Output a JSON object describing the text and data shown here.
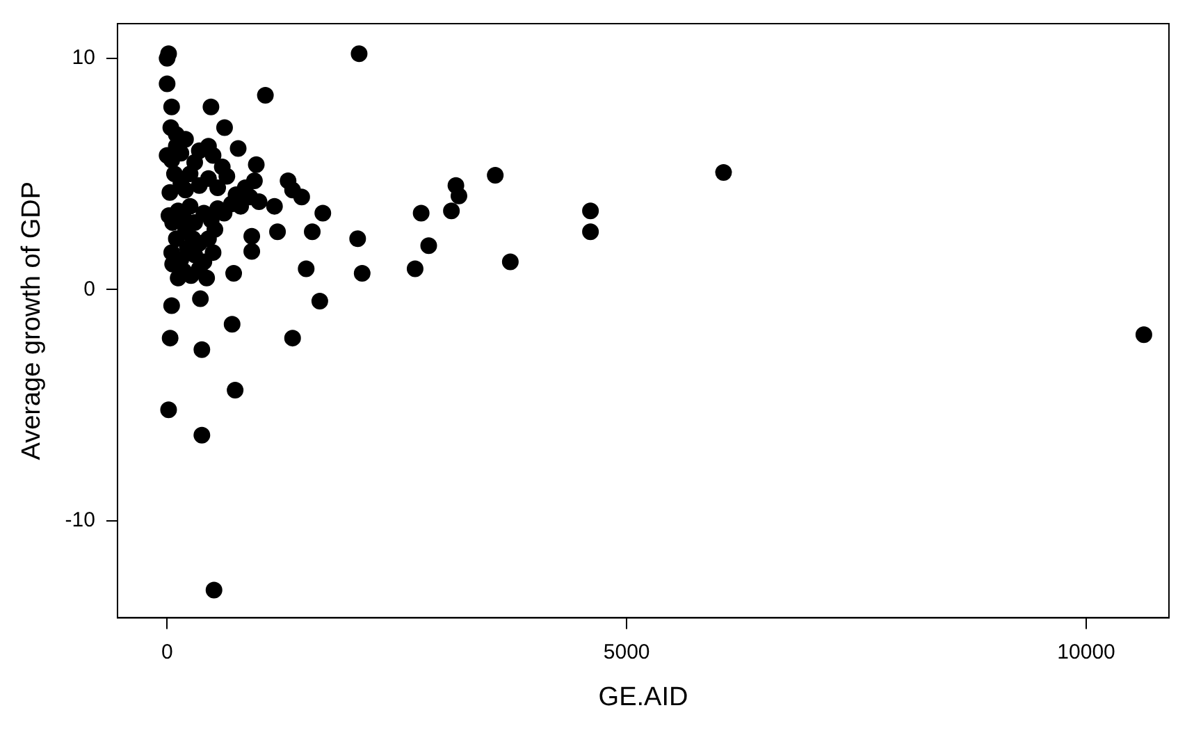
{
  "chart_data": {
    "type": "scatter",
    "xlabel": "GE.AID",
    "ylabel": "Average growth of GDP",
    "xlim": [
      -540,
      10900
    ],
    "ylim": [
      -14.2,
      11.5
    ],
    "xticks": [
      0,
      5000,
      10000
    ],
    "yticks": [
      -10,
      0,
      10
    ],
    "grid": false,
    "legend": false,
    "marker": "circle",
    "series": [
      {
        "color": "#000000",
        "x": [
          16,
          2089,
          0,
          0,
          1069,
          49,
          477,
          625,
          773,
          970,
          1316,
          1365,
          1464,
          1694,
          1168,
          1201,
          1579,
          2073,
          921,
          921,
          724,
          1513,
          2122,
          3570,
          3142,
          3175,
          3093,
          2764,
          2846,
          2698,
          3734,
          4606,
          4606,
          6054,
          10627,
          49,
          362,
          1661,
          707,
          33,
          1365,
          378,
          740,
          16,
          378,
          510,
          0,
          50,
          100,
          150,
          200,
          40,
          100,
          300,
          350,
          450,
          500,
          600,
          250,
          80,
          150,
          30,
          200,
          350,
          450,
          550,
          650,
          750,
          800,
          700,
          20,
          60,
          120,
          180,
          250,
          300,
          400,
          480,
          550,
          620,
          200,
          280,
          350,
          450,
          520,
          100,
          50,
          150,
          220,
          300,
          400,
          500,
          60,
          180,
          260,
          350,
          430,
          120,
          900,
          1000,
          850,
          950
        ],
        "values": [
          10.2,
          10.2,
          10.0,
          8.9,
          8.4,
          7.9,
          7.9,
          7.0,
          6.1,
          5.4,
          4.7,
          4.3,
          4.0,
          3.3,
          3.6,
          2.5,
          2.5,
          2.2,
          2.3,
          1.65,
          0.7,
          0.9,
          0.7,
          4.94,
          4.5,
          4.05,
          3.4,
          3.3,
          1.9,
          0.9,
          1.2,
          3.4,
          2.5,
          5.06,
          -1.95,
          -0.7,
          -0.4,
          -0.5,
          -1.5,
          -2.1,
          -2.1,
          -2.6,
          -4.35,
          -5.2,
          -6.3,
          -13.0,
          5.8,
          5.6,
          6.2,
          5.9,
          6.5,
          7.0,
          6.7,
          5.5,
          6.0,
          6.2,
          5.8,
          5.3,
          5.0,
          5.0,
          4.6,
          4.2,
          4.3,
          4.5,
          4.8,
          4.4,
          4.9,
          4.1,
          3.6,
          3.7,
          3.2,
          2.9,
          3.4,
          3.1,
          3.6,
          2.9,
          3.3,
          3.0,
          3.5,
          3.3,
          2.5,
          2.2,
          2.0,
          2.2,
          2.6,
          2.2,
          1.6,
          1.3,
          1.8,
          1.5,
          1.2,
          1.6,
          1.1,
          0.8,
          0.6,
          0.9,
          0.5,
          0.5,
          4.0,
          3.8,
          4.4,
          4.7
        ]
      }
    ]
  }
}
